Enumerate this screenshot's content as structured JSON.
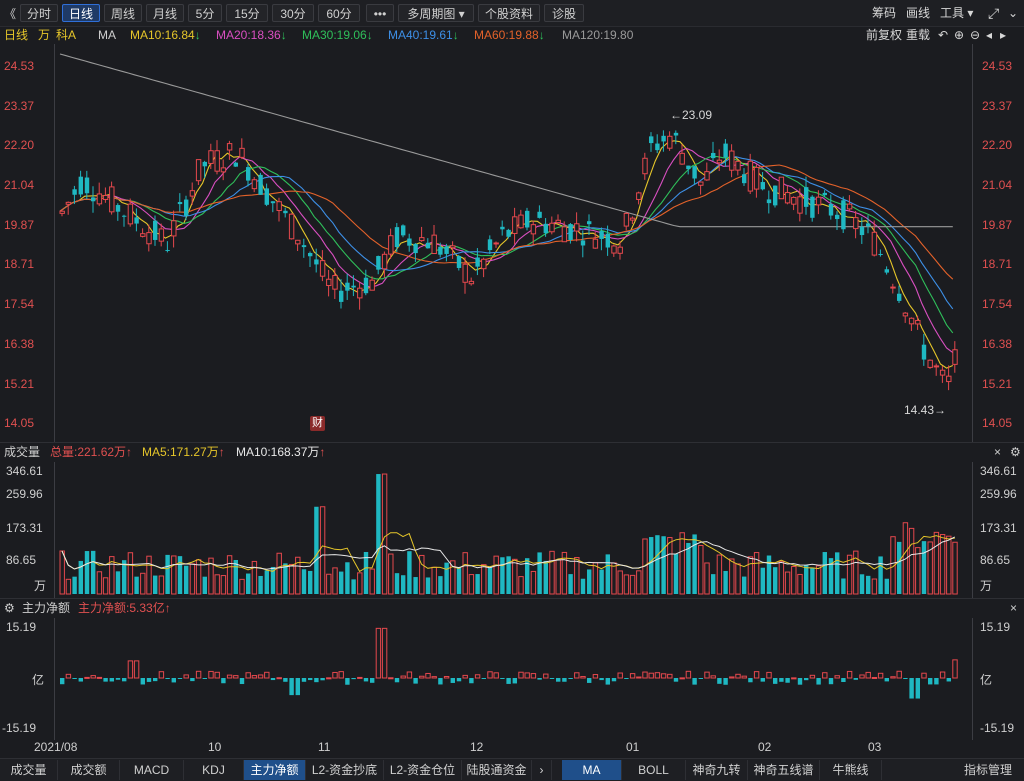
{
  "toolbar": {
    "back_icon": "《",
    "periods": [
      "分时",
      "日线",
      "周线",
      "月线",
      "5分",
      "15分",
      "30分",
      "60分"
    ],
    "active_period": "日线",
    "more_label": "•••",
    "multi_period_label": "多周期图 ▾",
    "stock_info_label": "个股资料",
    "diagnose_label": "诊股",
    "right_items": [
      "筹码",
      "画线",
      "工具 ▾"
    ],
    "expand_icon": "⤢"
  },
  "ma_bar": {
    "period_label": "日线",
    "wan_label": "万",
    "stock_name": "科A",
    "ma_label": "MA",
    "ma10": "MA10:16.84",
    "ma20": "MA20:18.36",
    "ma30": "MA30:19.06",
    "ma40": "MA40:19.61",
    "ma60": "MA60:19.88",
    "ma120": "MA120:19.80",
    "down_arrow": "↓",
    "adj_label": "前复权",
    "reload_label": "重载",
    "colors": {
      "ma10": "#e6c62a",
      "ma20": "#d94fc1",
      "ma30": "#2fbf5a",
      "ma40": "#3d8fe6",
      "ma60": "#e4622a",
      "ma120": "#9a9a9a"
    }
  },
  "price_axis": {
    "labels": [
      "24.53",
      "23.37",
      "22.20",
      "21.04",
      "19.87",
      "18.71",
      "17.54",
      "16.38",
      "15.21",
      "14.05"
    ]
  },
  "annotations": {
    "high_label": "←23.09",
    "low_label": "14.43→",
    "finance_badge": "财"
  },
  "volume_panel": {
    "title": "成交量",
    "total": "总量:221.62万",
    "ma5": "MA5:171.27万",
    "ma10": "MA10:168.37万",
    "up_arrow": "↑",
    "axis_labels": [
      "346.61",
      "259.96",
      "173.31",
      "86.65",
      "万"
    ],
    "close_icon": "×"
  },
  "flow_panel": {
    "title": "主力净额",
    "value": "主力净额:5.33亿",
    "up_arrow": "↑",
    "axis_labels": [
      "15.19",
      "亿",
      "-15.19"
    ],
    "close_icon": "×"
  },
  "x_axis": {
    "labels": [
      "2021/08",
      "10",
      "11",
      "12",
      "01",
      "02",
      "03"
    ]
  },
  "bottom_tabs": {
    "left": [
      "成交量",
      "成交额",
      "MACD",
      "KDJ",
      "主力净额",
      "L2-资金抄底",
      "L2-资金仓位",
      "陆股通资金"
    ],
    "active_left": "主力净额",
    "arrow": "›",
    "right": [
      "MA",
      "BOLL",
      "神奇九转",
      "神奇五线谱",
      "牛熊线"
    ],
    "active_right": "MA",
    "manage": "指标管理"
  },
  "chart_data": {
    "type": "candlestick",
    "y_range": [
      14.05,
      24.53
    ],
    "price_high": 23.09,
    "price_low": 14.43,
    "volume_range": [
      0,
      346.61
    ],
    "flow_range": [
      -15.19,
      15.19
    ],
    "x_labels": [
      "2021/08",
      "10",
      "11",
      "12",
      "01",
      "02",
      "03"
    ]
  }
}
